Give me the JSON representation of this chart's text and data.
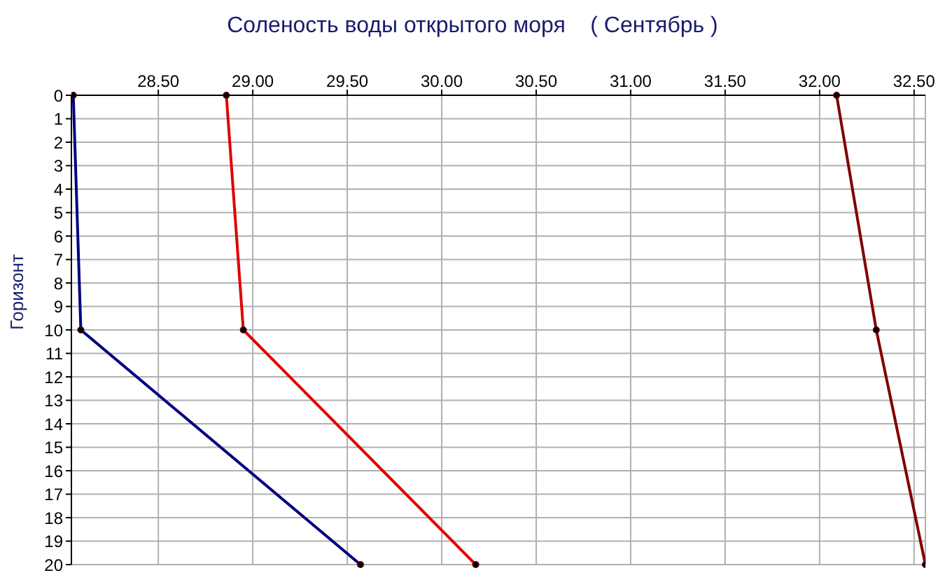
{
  "chart_data": {
    "type": "line",
    "title": "Соленость воды открытого моря    ( Сентябрь )",
    "ylabel": "Горизонт",
    "categories": [
      "0",
      "1",
      "2",
      "3",
      "4",
      "5",
      "6",
      "7",
      "8",
      "9",
      "10",
      "11",
      "12",
      "13",
      "14",
      "15",
      "16",
      "17",
      "18",
      "19",
      "20"
    ],
    "orientation": "horizontal",
    "xlim": [
      28.04,
      32.56
    ],
    "xticks": [
      {
        "value": 28.5,
        "label": "28.50"
      },
      {
        "value": 29,
        "label": "29.00"
      },
      {
        "value": 29.5,
        "label": "29.50"
      },
      {
        "value": 30,
        "label": "30.00"
      },
      {
        "value": 30.5,
        "label": "30.50"
      },
      {
        "value": 31,
        "label": "31.00"
      },
      {
        "value": 31.5,
        "label": "31.50"
      },
      {
        "value": 32,
        "label": "32.00"
      },
      {
        "value": 32.5,
        "label": "32.50"
      }
    ],
    "series": [
      {
        "color": "#000080",
        "values": [
          28.05,
          null,
          null,
          null,
          null,
          null,
          null,
          null,
          null,
          null,
          28.09,
          null,
          null,
          null,
          null,
          null,
          null,
          null,
          null,
          null,
          29.57
        ]
      },
      {
        "color": "#e00000",
        "values": [
          28.86,
          null,
          null,
          null,
          null,
          null,
          null,
          null,
          null,
          null,
          28.95,
          null,
          null,
          null,
          null,
          null,
          null,
          null,
          null,
          null,
          30.18
        ]
      },
      {
        "color": "#800000",
        "values": [
          32.09,
          null,
          null,
          null,
          null,
          null,
          null,
          null,
          null,
          null,
          32.3,
          null,
          null,
          null,
          null,
          null,
          null,
          null,
          null,
          null,
          32.56
        ]
      }
    ],
    "grid": true,
    "marker": "circle",
    "line_style": "solid"
  }
}
